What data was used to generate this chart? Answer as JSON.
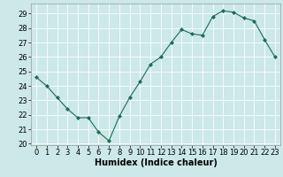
{
  "x": [
    0,
    1,
    2,
    3,
    4,
    5,
    6,
    7,
    8,
    9,
    10,
    11,
    12,
    13,
    14,
    15,
    16,
    17,
    18,
    19,
    20,
    21,
    22,
    23
  ],
  "y": [
    24.6,
    24.0,
    23.2,
    22.4,
    21.8,
    21.8,
    20.8,
    20.2,
    21.9,
    23.2,
    24.3,
    25.5,
    26.0,
    27.0,
    27.9,
    27.6,
    27.5,
    28.8,
    29.2,
    29.1,
    28.7,
    28.5,
    27.2,
    26.0
  ],
  "line_color": "#1a6b5a",
  "marker": "D",
  "marker_size": 2.0,
  "bg_color": "#cce8e8",
  "grid_color": "#ffffff",
  "xlabel": "Humidex (Indice chaleur)",
  "ylim": [
    19.9,
    29.7
  ],
  "xlim": [
    -0.5,
    23.5
  ],
  "yticks": [
    20,
    21,
    22,
    23,
    24,
    25,
    26,
    27,
    28,
    29
  ],
  "xticks": [
    0,
    1,
    2,
    3,
    4,
    5,
    6,
    7,
    8,
    9,
    10,
    11,
    12,
    13,
    14,
    15,
    16,
    17,
    18,
    19,
    20,
    21,
    22,
    23
  ],
  "tick_fontsize": 6,
  "xlabel_fontsize": 7,
  "linewidth": 0.8
}
